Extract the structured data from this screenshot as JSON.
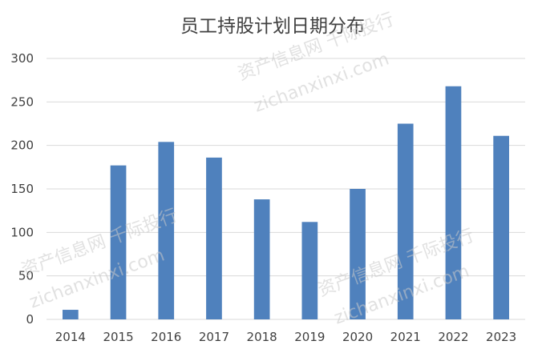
{
  "chart_data": {
    "type": "bar",
    "title": "员工持股计划日期分布",
    "xlabel": "",
    "ylabel": "",
    "categories": [
      "2014",
      "2015",
      "2016",
      "2017",
      "2018",
      "2019",
      "2020",
      "2021",
      "2022",
      "2023"
    ],
    "values": [
      11,
      177,
      204,
      186,
      138,
      112,
      150,
      225,
      268,
      211
    ],
    "ylim": [
      0,
      300
    ],
    "yticks": [
      0,
      50,
      100,
      150,
      200,
      250,
      300
    ],
    "grid": true,
    "legend": "none",
    "bar_color": "#4f81bd",
    "grid_color": "#d9d9d9"
  },
  "watermarks": [
    {
      "text": "资产信息网 千际投行"
    },
    {
      "text": "zichanxinxi.com"
    }
  ]
}
